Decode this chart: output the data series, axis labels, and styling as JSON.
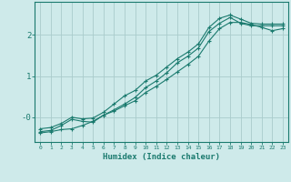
{
  "title": "",
  "xlabel": "Humidex (Indice chaleur)",
  "ylabel": "",
  "background_color": "#ceeaea",
  "grid_color": "#aacccc",
  "line_color": "#1a7a6e",
  "x_all": [
    0,
    1,
    2,
    3,
    4,
    5,
    6,
    7,
    8,
    9,
    10,
    11,
    12,
    13,
    14,
    15,
    16,
    17,
    18,
    19,
    20,
    21,
    22,
    23
  ],
  "line1_y": [
    -0.35,
    -0.32,
    -0.2,
    -0.05,
    -0.1,
    -0.12,
    0.05,
    0.18,
    0.32,
    0.48,
    0.72,
    0.88,
    1.08,
    1.32,
    1.48,
    1.68,
    2.08,
    2.28,
    2.42,
    2.28,
    2.22,
    2.22,
    2.22,
    2.22
  ],
  "line2_y": [
    -0.28,
    -0.25,
    -0.15,
    0.0,
    -0.04,
    -0.02,
    0.12,
    0.32,
    0.52,
    0.65,
    0.88,
    1.02,
    1.22,
    1.42,
    1.58,
    1.78,
    2.18,
    2.4,
    2.48,
    2.38,
    2.28,
    2.26,
    2.26,
    2.26
  ],
  "line3_y": [
    -0.38,
    -0.35,
    -0.3,
    -0.28,
    -0.2,
    -0.1,
    0.05,
    0.15,
    0.28,
    0.4,
    0.6,
    0.75,
    0.92,
    1.1,
    1.28,
    1.48,
    1.85,
    2.15,
    2.3,
    2.3,
    2.25,
    2.18,
    2.1,
    2.15
  ],
  "xlim": [
    -0.5,
    23.5
  ],
  "ylim": [
    -0.6,
    2.8
  ],
  "yticks": [
    0.0,
    1.0,
    2.0
  ],
  "ytick_labels": [
    "-0",
    "1",
    "2"
  ],
  "xticks": [
    0,
    1,
    2,
    3,
    4,
    5,
    6,
    7,
    8,
    9,
    10,
    11,
    12,
    13,
    14,
    15,
    16,
    17,
    18,
    19,
    20,
    21,
    22,
    23
  ],
  "marker": "+"
}
